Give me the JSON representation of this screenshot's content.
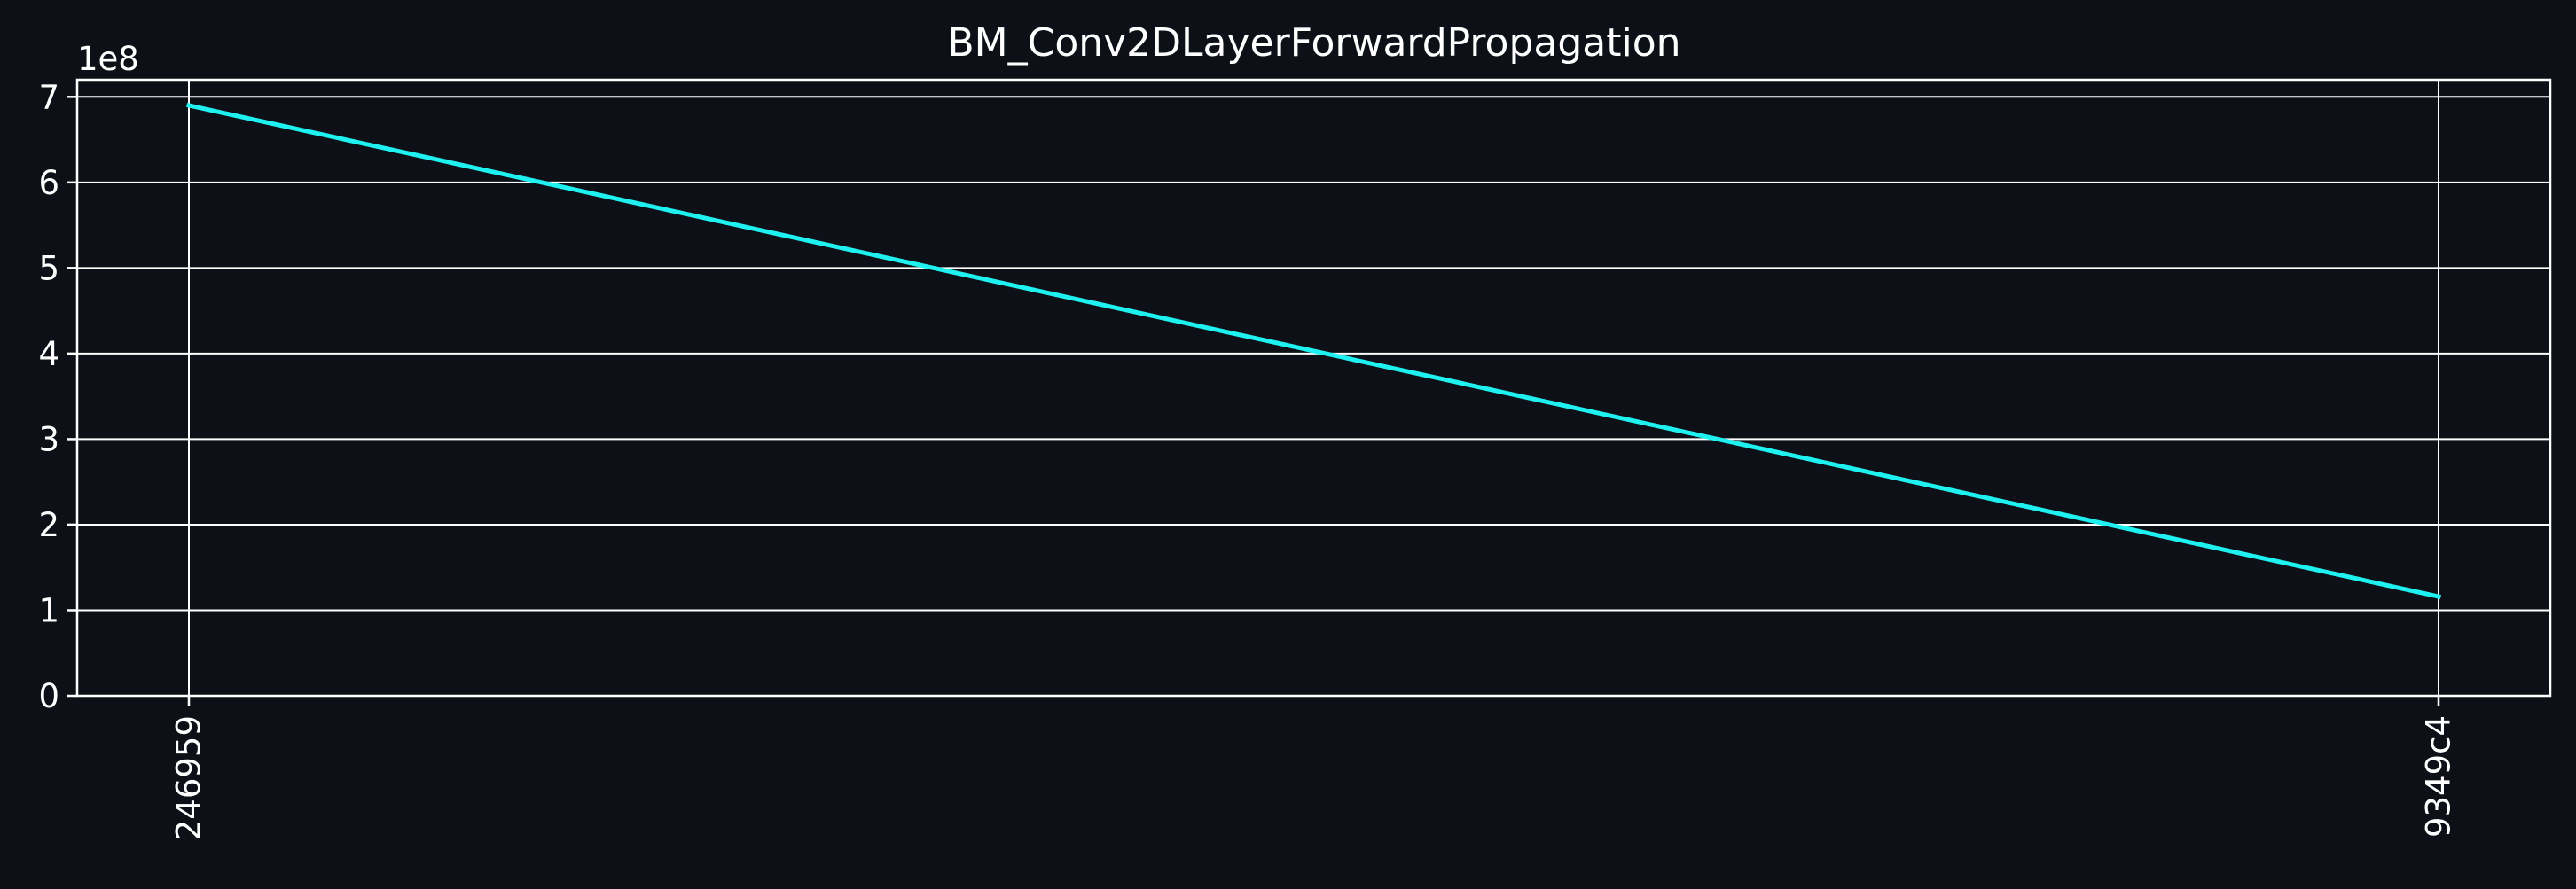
{
  "chart_data": {
    "type": "line",
    "title": "BM_Conv2DLayerForwardPropagation",
    "xlabel": "",
    "ylabel": "",
    "categories": [
      "246959",
      "9349c4"
    ],
    "series": [
      {
        "values": [
          690000000,
          116000000
        ]
      }
    ],
    "ylim": [
      0,
      720000000
    ],
    "y_ticks": [
      0,
      100000000,
      200000000,
      300000000,
      400000000,
      500000000,
      600000000,
      700000000
    ],
    "y_tick_labels": [
      "0",
      "1",
      "2",
      "3",
      "4",
      "5",
      "6",
      "7"
    ],
    "y_offset_label": "1e8",
    "grid": true,
    "legend": "none",
    "x_tick_rotation": "vertical"
  },
  "colors": {
    "background": "#0d1017",
    "axes": "#ffffff",
    "grid": "#ffffff",
    "text": "#ffffff",
    "line": "#1ff0f0"
  }
}
